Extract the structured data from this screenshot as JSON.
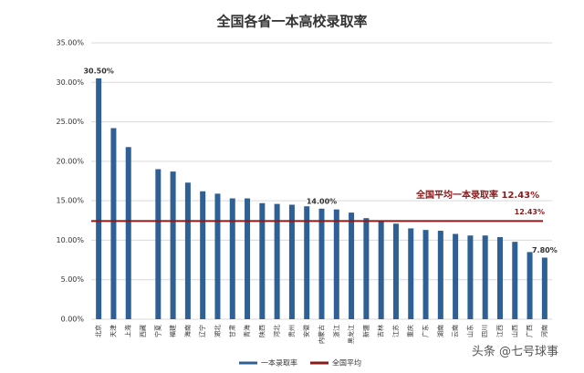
{
  "chart_data": {
    "type": "bar",
    "title": "全国各省一本高校录取率",
    "categories": [
      "北京",
      "天津",
      "上海",
      "西藏",
      "宁夏",
      "福建",
      "海南",
      "辽宁",
      "湖北",
      "甘肃",
      "青海",
      "陕西",
      "河北",
      "贵州",
      "安徽",
      "内蒙古",
      "浙江",
      "黑龙江",
      "新疆",
      "吉林",
      "江苏",
      "重庆",
      "广东",
      "湖南",
      "云南",
      "山东",
      "四川",
      "江西",
      "山西",
      "广西",
      "河南"
    ],
    "series": [
      {
        "name": "一本录取率",
        "color": "#2e5f95",
        "values": [
          30.5,
          24.2,
          21.8,
          null,
          19.0,
          18.7,
          17.3,
          16.2,
          15.9,
          15.3,
          15.3,
          14.7,
          14.6,
          14.5,
          14.3,
          14.0,
          13.9,
          13.5,
          12.8,
          12.5,
          12.1,
          11.5,
          11.3,
          11.2,
          10.8,
          10.6,
          10.6,
          10.4,
          9.8,
          8.5,
          7.8
        ],
        "value_labels": [
          "30.50%",
          null,
          null,
          null,
          null,
          null,
          null,
          null,
          null,
          null,
          null,
          null,
          null,
          null,
          null,
          "14.00%",
          null,
          null,
          null,
          null,
          null,
          null,
          null,
          null,
          null,
          null,
          null,
          null,
          null,
          null,
          "7.80%"
        ]
      }
    ],
    "average": {
      "name": "全国平均",
      "color": "#8b1a1a",
      "value": 12.43,
      "label": "12.43%"
    },
    "annotation": "全国平均一本录取率 12.43%",
    "watermark": "头条 @七号球事",
    "ylim": [
      0,
      35
    ],
    "yticks": [
      {
        "value": 0,
        "label": "0.00%"
      },
      {
        "value": 5,
        "label": "5.00%"
      },
      {
        "value": 10,
        "label": "10.00%"
      },
      {
        "value": 15,
        "label": "15.00%"
      },
      {
        "value": 20,
        "label": "20.00%"
      },
      {
        "value": 25,
        "label": "25.00%"
      },
      {
        "value": 30,
        "label": "30.00%"
      },
      {
        "value": 35,
        "label": "35.00%"
      }
    ],
    "grid": true
  }
}
